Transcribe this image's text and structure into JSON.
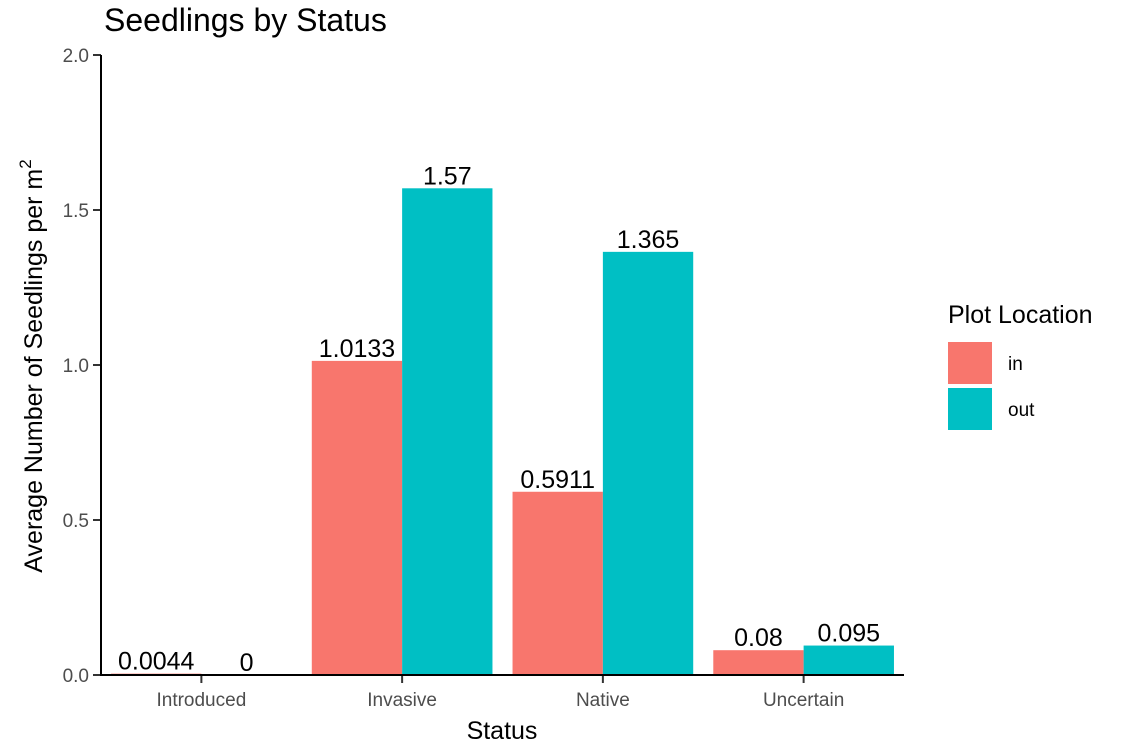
{
  "chart_data": {
    "type": "bar",
    "title": "Seedlings by Status",
    "xlabel": "Status",
    "ylabel": "Average Number of Seedlings per m",
    "ylabel_superscript": "2",
    "categories": [
      "Introduced",
      "Invasive",
      "Native",
      "Uncertain"
    ],
    "ylim": [
      0,
      2.0
    ],
    "yticks": [
      "0.0",
      "0.5",
      "1.0",
      "1.5",
      "2.0"
    ],
    "grid": false,
    "legend_position": "right",
    "legend_title": "Plot Location",
    "series": [
      {
        "name": "in",
        "color": "#F8766D",
        "values": [
          0.0044,
          1.0133,
          0.5911,
          0.08
        ],
        "labels": [
          "0.0044",
          "1.0133",
          "0.5911",
          "0.08"
        ]
      },
      {
        "name": "out",
        "color": "#00BFC4",
        "values": [
          0,
          1.57,
          1.365,
          0.095
        ],
        "labels": [
          "0",
          "1.57",
          "1.365",
          "0.095"
        ]
      }
    ]
  }
}
